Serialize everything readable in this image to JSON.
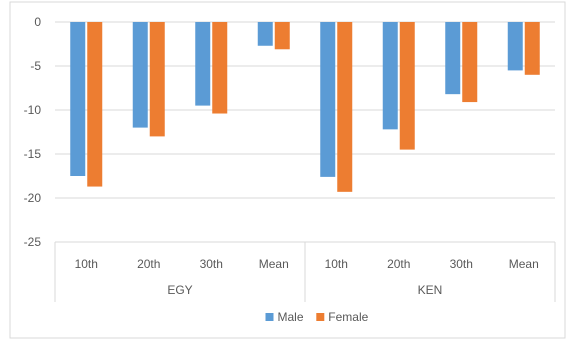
{
  "chart_data": {
    "type": "bar",
    "groups": [
      {
        "name": "EGY",
        "categories": [
          "10th",
          "20th",
          "30th",
          "Mean"
        ]
      },
      {
        "name": "KEN",
        "categories": [
          "10th",
          "20th",
          "30th",
          "Mean"
        ]
      }
    ],
    "series": [
      {
        "name": "Male",
        "color": "#5B9BD5",
        "values": [
          -17.5,
          -12.0,
          -9.5,
          -2.7,
          -17.6,
          -12.2,
          -8.2,
          -5.5
        ]
      },
      {
        "name": "Female",
        "color": "#ED7D31",
        "values": [
          -18.7,
          -13.0,
          -10.4,
          -3.1,
          -19.3,
          -14.5,
          -9.1,
          -6.0
        ]
      }
    ],
    "title": "",
    "xlabel": "",
    "ylabel": "",
    "ylim": [
      -25,
      0
    ],
    "yticks": [
      0,
      -5,
      -10,
      -15,
      -20,
      -25
    ],
    "grid": true,
    "legend_position": "bottom"
  }
}
